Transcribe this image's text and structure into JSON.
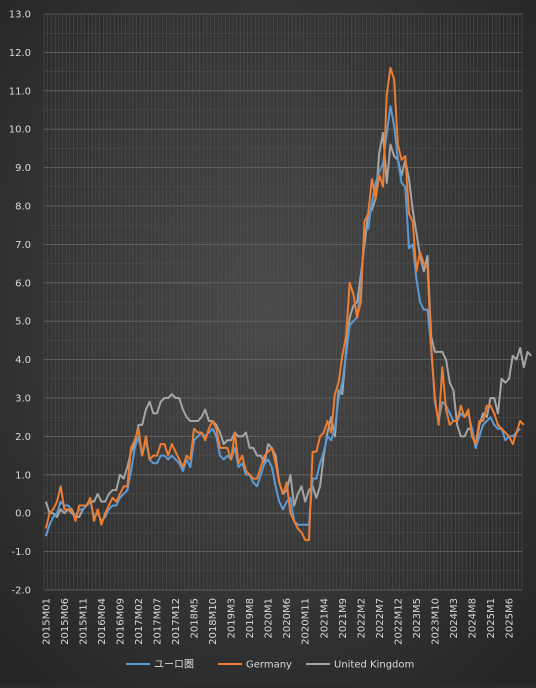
{
  "chart_data": {
    "type": "line",
    "ylim": [
      -2.0,
      13.0
    ],
    "yticks": [
      "-2.0",
      "-1.0",
      "0.0",
      "1.0",
      "2.0",
      "3.0",
      "4.0",
      "5.0",
      "6.0",
      "7.0",
      "8.0",
      "9.0",
      "10.0",
      "11.0",
      "12.0",
      "13.0"
    ],
    "x_start": "2015-01",
    "x_points": 129,
    "x_tick_labels": [
      {
        "label": "2015M01",
        "index": 0
      },
      {
        "label": "2015M06",
        "index": 5
      },
      {
        "label": "2015M11",
        "index": 10
      },
      {
        "label": "2016M04",
        "index": 15
      },
      {
        "label": "2016M09",
        "index": 20
      },
      {
        "label": "2017M02",
        "index": 25
      },
      {
        "label": "2017M07",
        "index": 30
      },
      {
        "label": "2017M12",
        "index": 35
      },
      {
        "label": "2018M5",
        "index": 40
      },
      {
        "label": "2018M10",
        "index": 45
      },
      {
        "label": "2019M3",
        "index": 50
      },
      {
        "label": "2019M8",
        "index": 55
      },
      {
        "label": "2020M1",
        "index": 60
      },
      {
        "label": "2020M6",
        "index": 65
      },
      {
        "label": "2020M11",
        "index": 70
      },
      {
        "label": "2021M4",
        "index": 75
      },
      {
        "label": "2021M9",
        "index": 80
      },
      {
        "label": "2022M2",
        "index": 85
      },
      {
        "label": "2022M7",
        "index": 90
      },
      {
        "label": "2022M12",
        "index": 95
      },
      {
        "label": "2023M5",
        "index": 100
      },
      {
        "label": "2023M10",
        "index": 105
      },
      {
        "label": "2024M3",
        "index": 110
      },
      {
        "label": "2024M8",
        "index": 115
      },
      {
        "label": "2025M1",
        "index": 120
      },
      {
        "label": "2025M6",
        "index": 125
      }
    ],
    "grid": true,
    "legend_position": "bottom",
    "series": [
      {
        "name": "ユーロ圏",
        "color": "#5b9bd5",
        "values": [
          -0.6,
          -0.3,
          -0.1,
          0.0,
          0.3,
          0.2,
          0.2,
          0.1,
          -0.1,
          0.1,
          0.1,
          0.2,
          0.3,
          -0.1,
          0.0,
          -0.2,
          -0.1,
          0.1,
          0.2,
          0.2,
          0.4,
          0.5,
          0.6,
          1.1,
          1.7,
          2.0,
          1.5,
          1.9,
          1.4,
          1.3,
          1.3,
          1.5,
          1.5,
          1.4,
          1.5,
          1.4,
          1.3,
          1.1,
          1.4,
          1.2,
          1.9,
          2.0,
          2.1,
          2.0,
          2.1,
          2.2,
          2.0,
          1.5,
          1.4,
          1.5,
          1.4,
          1.7,
          1.2,
          1.3,
          1.0,
          1.0,
          0.8,
          0.7,
          1.0,
          1.3,
          1.4,
          1.2,
          0.7,
          0.3,
          0.1,
          0.3,
          0.4,
          -0.2,
          -0.3,
          -0.3,
          -0.3,
          -0.3,
          0.9,
          0.9,
          1.3,
          1.6,
          2.0,
          1.9,
          2.2,
          3.0,
          3.4,
          4.1,
          4.9,
          5.0,
          5.1,
          5.9,
          7.4,
          7.4,
          8.1,
          8.6,
          8.9,
          9.1,
          9.9,
          10.6,
          10.1,
          9.2,
          8.6,
          8.5,
          6.9,
          7.0,
          6.1,
          5.5,
          5.3,
          5.3,
          4.3,
          2.9,
          2.4,
          2.9,
          2.8,
          2.6,
          2.4,
          2.4,
          2.6,
          2.5,
          2.6,
          2.2,
          1.7,
          2.0,
          2.3,
          2.4,
          2.5,
          2.3,
          2.2,
          2.2,
          1.9,
          2.0,
          2.0,
          2.1,
          2.2
        ]
      },
      {
        "name": "Germany",
        "color": "#ed7d31",
        "values": [
          -0.4,
          0.0,
          0.1,
          0.3,
          0.7,
          0.1,
          0.1,
          0.1,
          -0.2,
          0.2,
          0.2,
          0.2,
          0.4,
          -0.2,
          0.1,
          -0.3,
          0.0,
          0.2,
          0.4,
          0.3,
          0.5,
          0.7,
          0.7,
          1.7,
          1.9,
          2.2,
          1.5,
          2.0,
          1.4,
          1.5,
          1.5,
          1.8,
          1.8,
          1.5,
          1.8,
          1.6,
          1.4,
          1.2,
          1.5,
          1.4,
          2.2,
          2.1,
          2.1,
          1.9,
          2.2,
          2.4,
          2.2,
          1.7,
          1.7,
          1.7,
          1.4,
          2.1,
          1.3,
          1.5,
          1.1,
          1.0,
          0.9,
          0.9,
          1.2,
          1.5,
          1.6,
          1.7,
          1.3,
          0.8,
          0.5,
          0.8,
          0.0,
          -0.2,
          -0.4,
          -0.5,
          -0.7,
          -0.7,
          1.6,
          1.6,
          2.0,
          2.1,
          2.4,
          2.1,
          3.1,
          3.4,
          4.1,
          4.6,
          6.0,
          5.7,
          5.1,
          5.5,
          7.6,
          7.8,
          8.7,
          8.2,
          8.8,
          8.5,
          10.9,
          11.6,
          11.3,
          9.6,
          9.2,
          9.3,
          7.8,
          7.6,
          6.3,
          6.8,
          6.5,
          6.4,
          4.3,
          3.0,
          2.3,
          3.8,
          2.7,
          2.3,
          2.4,
          2.4,
          2.8,
          2.5,
          2.7,
          2.0,
          1.8,
          2.4,
          2.4,
          2.8,
          2.8,
          2.6,
          2.3,
          2.2,
          2.1,
          2.0,
          1.8,
          2.1,
          2.4,
          2.3
        ]
      },
      {
        "name": "United Kingdom",
        "color": "#a5a5a5",
        "values": [
          0.3,
          0.0,
          0.0,
          -0.1,
          0.1,
          0.0,
          0.1,
          0.0,
          -0.1,
          -0.1,
          0.1,
          0.2,
          0.3,
          0.3,
          0.5,
          0.3,
          0.3,
          0.5,
          0.6,
          0.6,
          1.0,
          0.9,
          1.2,
          1.6,
          1.8,
          2.3,
          2.3,
          2.7,
          2.9,
          2.6,
          2.6,
          2.9,
          3.0,
          3.0,
          3.1,
          3.0,
          3.0,
          2.7,
          2.5,
          2.4,
          2.4,
          2.4,
          2.5,
          2.7,
          2.4,
          2.4,
          2.3,
          2.1,
          1.8,
          1.9,
          1.9,
          2.1,
          2.0,
          2.0,
          2.1,
          1.7,
          1.7,
          1.5,
          1.5,
          1.3,
          1.8,
          1.7,
          1.5,
          0.8,
          0.5,
          0.6,
          1.0,
          0.2,
          0.5,
          0.7,
          0.3,
          0.6,
          0.7,
          0.4,
          0.7,
          1.5,
          2.1,
          2.5,
          2.0,
          3.2,
          3.1,
          4.2,
          5.1,
          5.4,
          5.5,
          6.2,
          7.0,
          7.8,
          7.9,
          8.2,
          9.4,
          9.9,
          8.6,
          9.6,
          9.3,
          9.2,
          8.8,
          9.2,
          8.7,
          7.9,
          7.3,
          6.7,
          6.3,
          6.7,
          4.6,
          4.2,
          4.2,
          4.2,
          4.0,
          3.4,
          3.2,
          2.3,
          2.0,
          2.0,
          2.2,
          2.2,
          1.7,
          2.3,
          2.6,
          2.5,
          3.0,
          3.0,
          2.6,
          3.5,
          3.4,
          3.5,
          4.1,
          4.0,
          4.3,
          3.8,
          4.2,
          4.1
        ]
      }
    ]
  }
}
